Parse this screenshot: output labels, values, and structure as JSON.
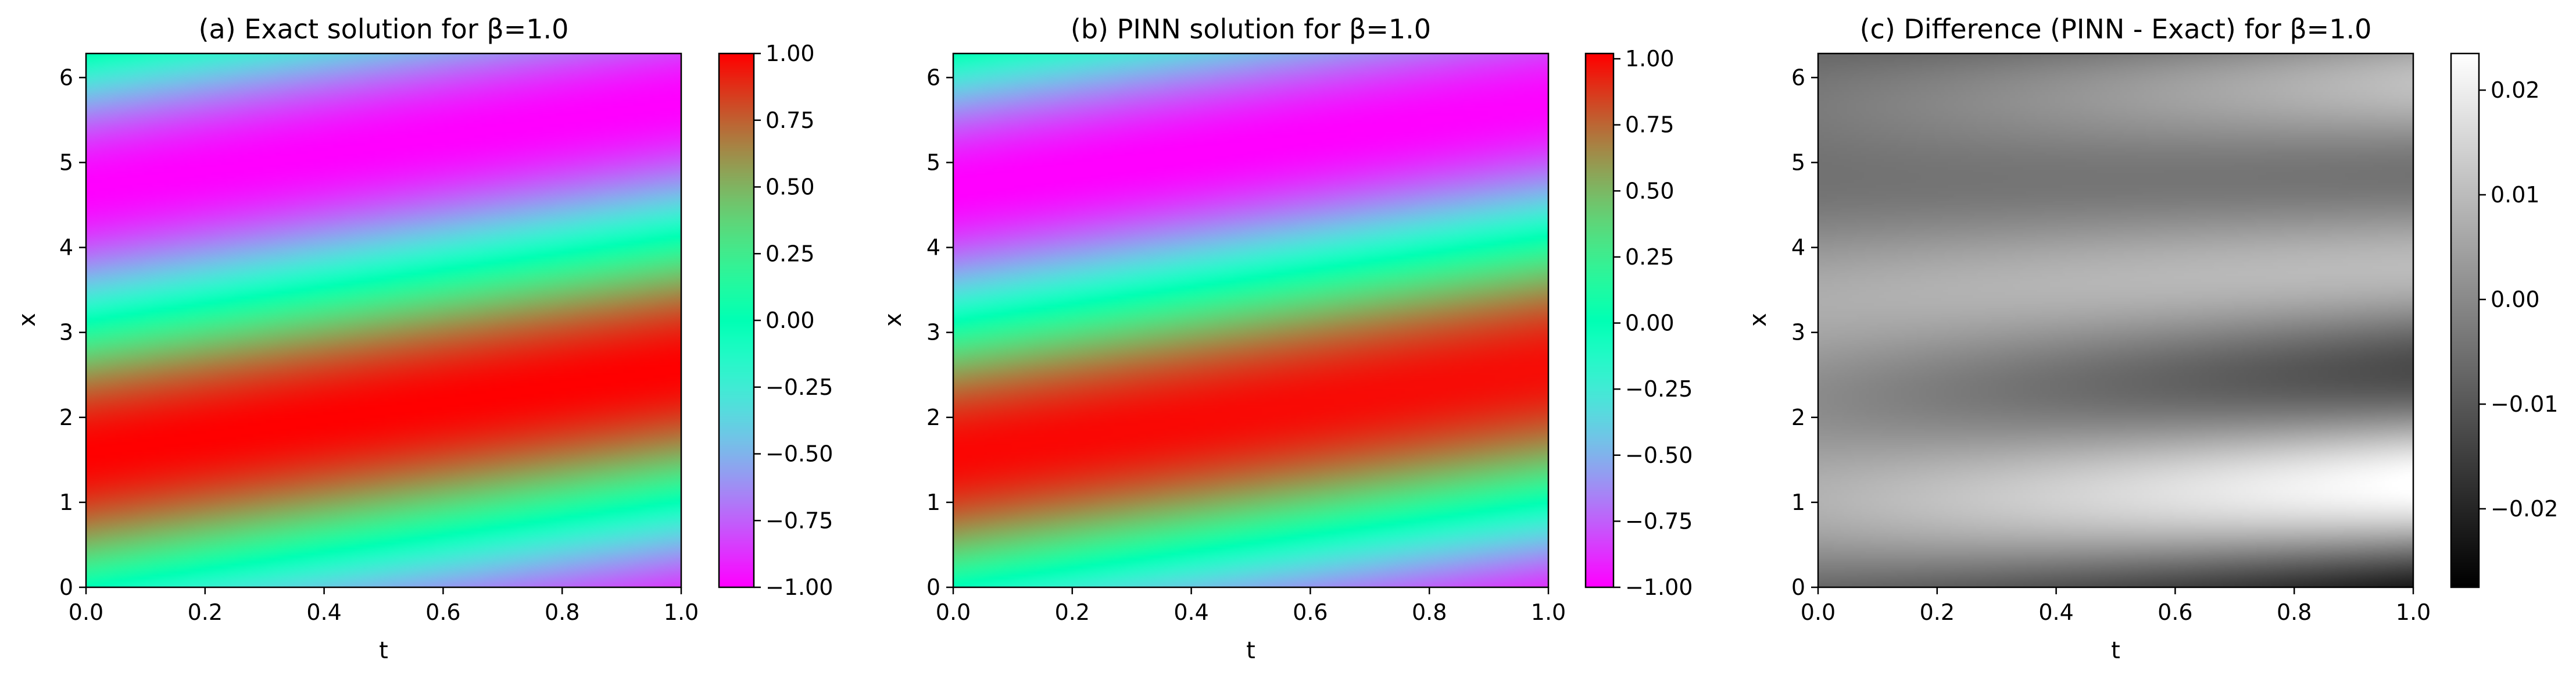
{
  "chart_data": [
    {
      "type": "heatmap",
      "title": "(a) Exact solution for β=1.0",
      "xlabel": "t",
      "ylabel": "x",
      "xlim": [
        0.0,
        1.0
      ],
      "ylim": [
        0,
        6.283
      ],
      "xticks": [
        "0.0",
        "0.2",
        "0.4",
        "0.6",
        "0.8",
        "1.0"
      ],
      "yticks": [
        "0",
        "1",
        "2",
        "3",
        "4",
        "5",
        "6"
      ],
      "colormap": "rainbow",
      "colorbar": {
        "range": [
          -1.0,
          1.0
        ],
        "ticks": [
          1.0,
          0.75,
          0.5,
          0.25,
          0.0,
          -0.25,
          -0.5,
          -0.75,
          -1.0
        ],
        "tick_labels": [
          "1.00",
          "0.75",
          "0.50",
          "0.25",
          "0.00",
          "−0.25",
          "−0.50",
          "−0.75",
          "−1.00"
        ]
      },
      "field": "sin(x - beta*t)",
      "beta": 1.0
    },
    {
      "type": "heatmap",
      "title": "(b) PINN solution for β=1.0",
      "xlabel": "t",
      "ylabel": "x",
      "xlim": [
        0.0,
        1.0
      ],
      "ylim": [
        0,
        6.283
      ],
      "xticks": [
        "0.0",
        "0.2",
        "0.4",
        "0.6",
        "0.8",
        "1.0"
      ],
      "yticks": [
        "0",
        "1",
        "2",
        "3",
        "4",
        "5",
        "6"
      ],
      "colormap": "rainbow",
      "colorbar": {
        "range": [
          -1.0,
          1.02
        ],
        "ticks": [
          1.0,
          0.75,
          0.5,
          0.25,
          0.0,
          -0.25,
          -0.5,
          -0.75,
          -1.0
        ],
        "tick_labels": [
          "1.00",
          "0.75",
          "0.50",
          "0.25",
          "0.00",
          "−0.25",
          "−0.50",
          "−0.75",
          "−1.00"
        ]
      },
      "field": "sin(x - beta*t) + error",
      "beta": 1.0
    },
    {
      "type": "heatmap",
      "title": "(c) Difference (PINN - Exact) for β=1.0",
      "xlabel": "t",
      "ylabel": "x",
      "xlim": [
        0.0,
        1.0
      ],
      "ylim": [
        0,
        6.283
      ],
      "xticks": [
        "0.0",
        "0.2",
        "0.4",
        "0.6",
        "0.8",
        "1.0"
      ],
      "yticks": [
        "0",
        "1",
        "2",
        "3",
        "4",
        "5",
        "6"
      ],
      "colormap": "gray",
      "colorbar": {
        "range": [
          -0.0275,
          0.0235
        ],
        "ticks": [
          0.02,
          0.01,
          0.0,
          -0.01,
          -0.02
        ],
        "tick_labels": [
          "0.02",
          "0.01",
          "0.00",
          "−0.01",
          "−0.02"
        ]
      },
      "field": "error",
      "beta": 1.0
    }
  ]
}
